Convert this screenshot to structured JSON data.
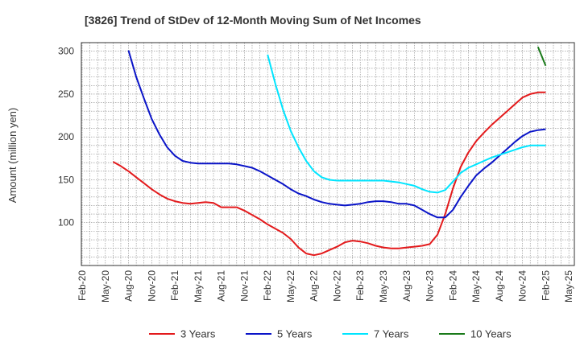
{
  "chart_data": {
    "type": "line",
    "title": "[3826]  Trend of StDev of 12-Month Moving Sum of Net Incomes",
    "ylabel": "Amount (million yen)",
    "xlabel": "",
    "ylim": [
      50,
      310
    ],
    "yticks": [
      100,
      150,
      200,
      250,
      300
    ],
    "x_tick_labels": [
      "Feb-20",
      "May-20",
      "Aug-20",
      "Nov-20",
      "Feb-21",
      "May-21",
      "Aug-21",
      "Nov-21",
      "Feb-22",
      "May-22",
      "Aug-22",
      "Nov-22",
      "Feb-23",
      "May-23",
      "Aug-23",
      "Nov-23",
      "Feb-24",
      "May-24",
      "Aug-24",
      "Nov-24",
      "Feb-25",
      "May-25"
    ],
    "x_months": [
      "2020-02",
      "2020-03",
      "2020-04",
      "2020-05",
      "2020-06",
      "2020-07",
      "2020-08",
      "2020-09",
      "2020-10",
      "2020-11",
      "2020-12",
      "2021-01",
      "2021-02",
      "2021-03",
      "2021-04",
      "2021-05",
      "2021-06",
      "2021-07",
      "2021-08",
      "2021-09",
      "2021-10",
      "2021-11",
      "2021-12",
      "2022-01",
      "2022-02",
      "2022-03",
      "2022-04",
      "2022-05",
      "2022-06",
      "2022-07",
      "2022-08",
      "2022-09",
      "2022-10",
      "2022-11",
      "2022-12",
      "2023-01",
      "2023-02",
      "2023-03",
      "2023-04",
      "2023-05",
      "2023-06",
      "2023-07",
      "2023-08",
      "2023-09",
      "2023-10",
      "2023-11",
      "2023-12",
      "2024-01",
      "2024-02",
      "2024-03",
      "2024-04",
      "2024-05",
      "2024-06",
      "2024-07",
      "2024-08",
      "2024-09",
      "2024-10",
      "2024-11",
      "2024-12",
      "2025-01",
      "2025-02"
    ],
    "grid": true,
    "legend_position": "bottom",
    "series": [
      {
        "name": "3 Years",
        "color": "#e31a1c",
        "values": [
          171,
          166,
          160,
          153,
          146,
          139,
          133,
          128,
          125,
          123,
          122,
          123,
          124,
          123,
          118,
          118,
          118,
          114,
          109,
          104,
          98,
          93,
          88,
          81,
          71,
          64,
          62,
          64,
          68,
          72,
          77,
          79,
          78,
          76,
          73,
          71,
          70,
          70,
          71,
          72,
          73,
          75,
          86,
          110,
          140,
          165,
          182,
          195,
          205,
          214,
          222,
          230,
          238,
          246,
          250,
          252,
          252
        ]
      },
      {
        "name": "5 Years",
        "color": "#0a14c8",
        "values": [
          301,
          270,
          245,
          221,
          203,
          188,
          178,
          172,
          170,
          169,
          169,
          169,
          169,
          169,
          168,
          166,
          164,
          160,
          155,
          150,
          145,
          139,
          134,
          131,
          127,
          124,
          122,
          121,
          120,
          121,
          122,
          124,
          125,
          125,
          124,
          122,
          122,
          120,
          115,
          110,
          106,
          106,
          115,
          130,
          143,
          155,
          163,
          170,
          178,
          186,
          194,
          201,
          206,
          208,
          209
        ]
      },
      {
        "name": "7 Years",
        "color": "#00e5ff",
        "values": [
          296,
          262,
          232,
          207,
          188,
          172,
          160,
          153,
          150,
          149,
          149,
          149,
          149,
          149,
          149,
          149,
          148,
          147,
          145,
          143,
          139,
          136,
          135,
          138,
          148,
          158,
          164,
          168,
          172,
          176,
          179,
          182,
          185,
          188,
          190,
          190,
          190
        ]
      },
      {
        "name": "10 Years",
        "color": "#1a7a1a",
        "values": [
          305,
          283
        ]
      }
    ]
  }
}
